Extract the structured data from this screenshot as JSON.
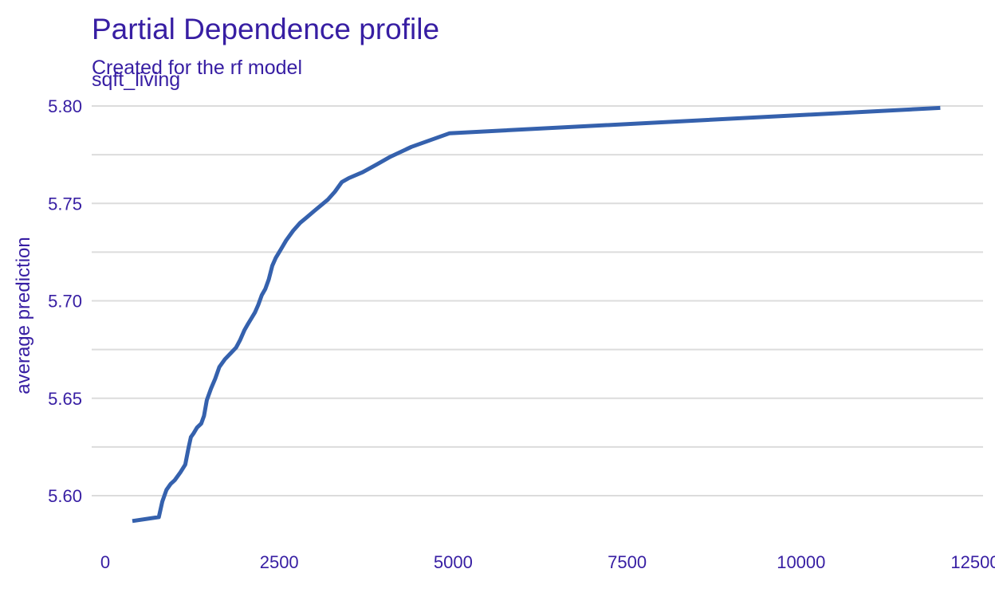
{
  "chart_data": {
    "type": "line",
    "title": "Partial Dependence profile",
    "subtitle": "Created for the rf model",
    "panel_label": "sqft_living",
    "xlabel": "",
    "ylabel": "average prediction",
    "xlim": [
      0,
      12500
    ],
    "ylim": [
      5.58,
      5.8
    ],
    "x_ticks": [
      0,
      2500,
      5000,
      7500,
      10000,
      12500
    ],
    "x_tick_labels": [
      "0",
      "2500",
      "5000",
      "7500",
      "10000",
      "12500"
    ],
    "y_ticks": [
      5.6,
      5.65,
      5.7,
      5.75,
      5.8
    ],
    "y_tick_labels": [
      "5.60",
      "5.65",
      "5.70",
      "5.75",
      "5.80"
    ],
    "grid": true,
    "legend": "none",
    "colors": {
      "line": "#3561ad",
      "text": "#371ea3",
      "grid": "#dcdcdc"
    },
    "series": [
      {
        "x": [
          390,
          770,
          820,
          880,
          940,
          1000,
          1080,
          1150,
          1200,
          1230,
          1270,
          1320,
          1380,
          1420,
          1460,
          1520,
          1580,
          1640,
          1720,
          1800,
          1880,
          1940,
          2000,
          2050,
          2100,
          2150,
          2200,
          2250,
          2300,
          2350,
          2400,
          2450,
          2500,
          2550,
          2600,
          2700,
          2800,
          2900,
          3000,
          3100,
          3200,
          3300,
          3400,
          3500,
          3700,
          3900,
          4100,
          4400,
          4950,
          12000
        ],
        "y": [
          5.587,
          5.589,
          5.597,
          5.603,
          5.606,
          5.608,
          5.612,
          5.616,
          5.625,
          5.63,
          5.632,
          5.635,
          5.637,
          5.641,
          5.649,
          5.655,
          5.66,
          5.666,
          5.67,
          5.673,
          5.676,
          5.68,
          5.685,
          5.688,
          5.691,
          5.694,
          5.698,
          5.703,
          5.706,
          5.711,
          5.718,
          5.722,
          5.725,
          5.728,
          5.731,
          5.736,
          5.74,
          5.743,
          5.746,
          5.749,
          5.752,
          5.756,
          5.761,
          5.763,
          5.766,
          5.77,
          5.774,
          5.779,
          5.786,
          5.799
        ]
      }
    ]
  }
}
